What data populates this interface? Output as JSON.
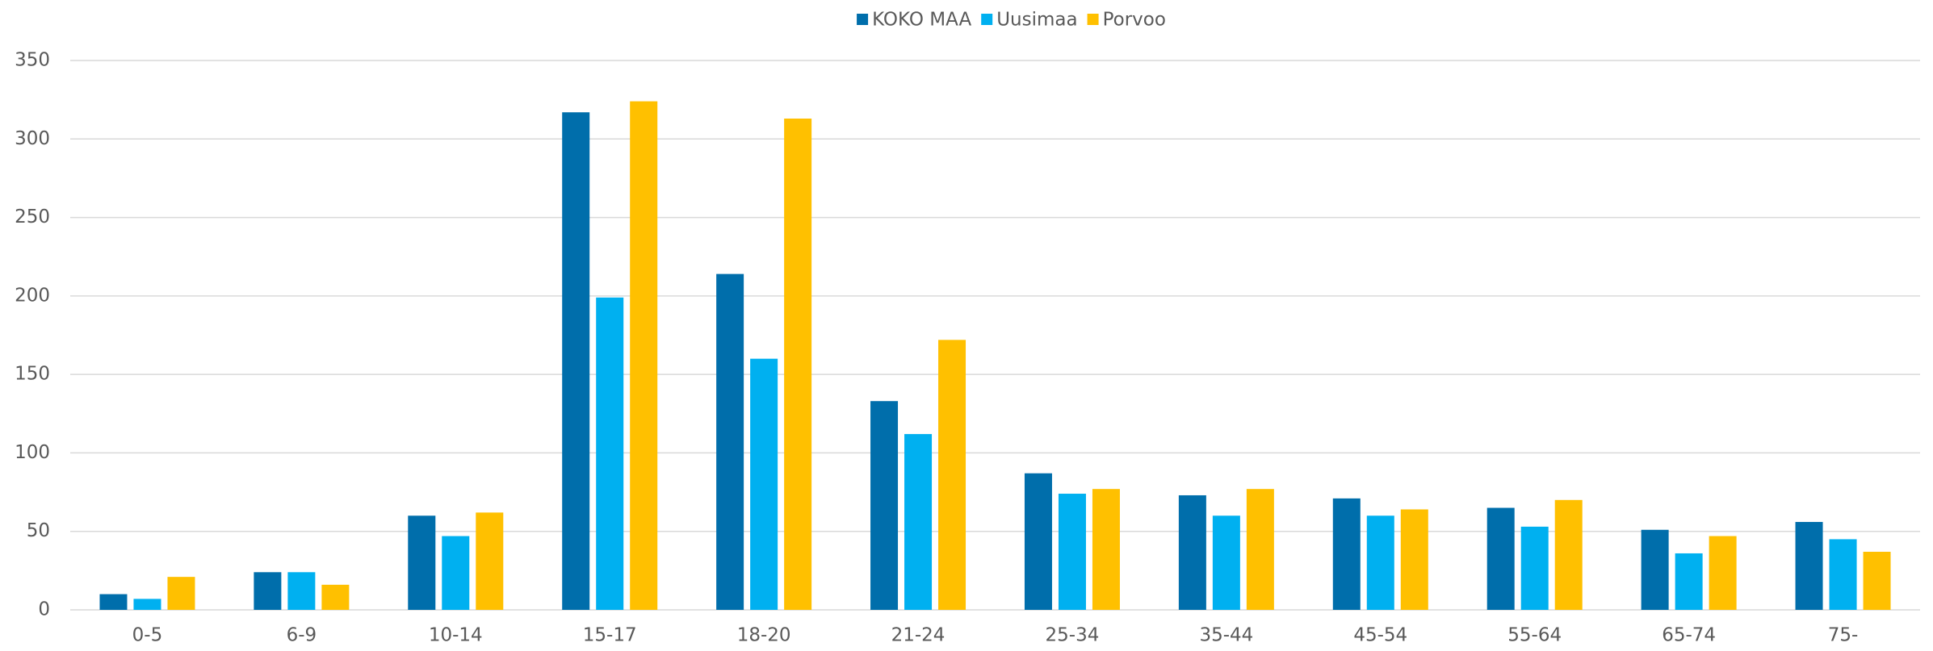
{
  "chart_data": {
    "type": "bar",
    "categories": [
      "0-5",
      "6-9",
      "10-14",
      "15-17",
      "18-20",
      "21-24",
      "25-34",
      "35-44",
      "45-54",
      "55-64",
      "65-74",
      "75-"
    ],
    "series": [
      {
        "name": "KOKO MAA",
        "color": "#006eab",
        "values": [
          10,
          24,
          60,
          317,
          214,
          133,
          87,
          73,
          71,
          65,
          51,
          56
        ]
      },
      {
        "name": "Uusimaa",
        "color": "#00b0f0",
        "values": [
          7,
          24,
          47,
          199,
          160,
          112,
          74,
          60,
          60,
          53,
          36,
          45
        ]
      },
      {
        "name": "Porvoo",
        "color": "#ffc000",
        "values": [
          21,
          16,
          62,
          324,
          313,
          172,
          77,
          77,
          64,
          70,
          47,
          37
        ]
      }
    ],
    "ylim": [
      0,
      350
    ],
    "yticks": [
      0,
      50,
      100,
      150,
      200,
      250,
      300,
      350
    ],
    "grid": true,
    "legend": "top"
  }
}
